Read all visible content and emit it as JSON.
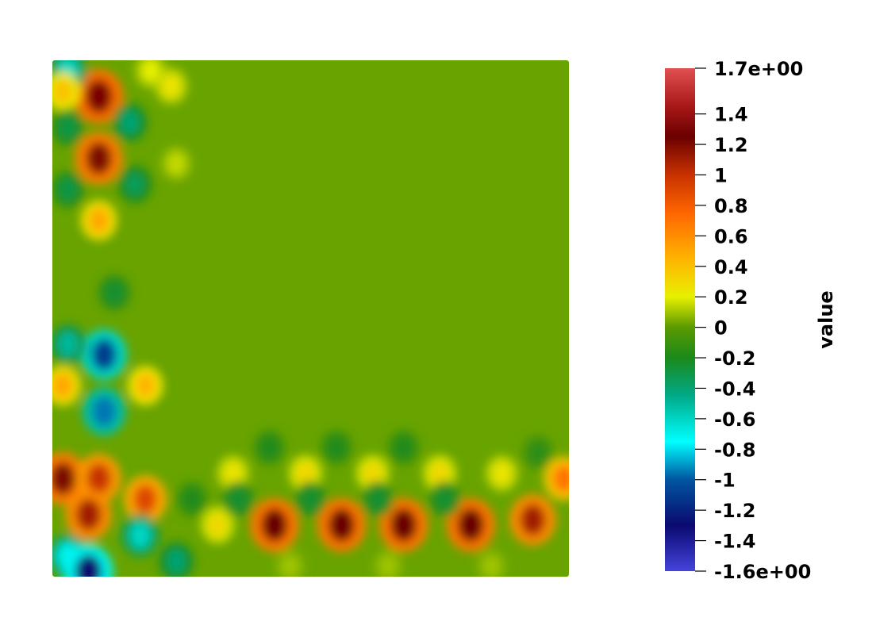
{
  "chart_data": {
    "type": "heatmap",
    "colorbar": {
      "title": "value",
      "range": [
        -1.6,
        1.7
      ],
      "ticks": [
        {
          "value": 1.7,
          "label": "1.7e+00"
        },
        {
          "value": 1.4,
          "label": "1.4"
        },
        {
          "value": 1.2,
          "label": "1.2"
        },
        {
          "value": 1.0,
          "label": "1"
        },
        {
          "value": 0.8,
          "label": "0.8"
        },
        {
          "value": 0.6,
          "label": "0.6"
        },
        {
          "value": 0.4,
          "label": "0.4"
        },
        {
          "value": 0.2,
          "label": "0.2"
        },
        {
          "value": 0.0,
          "label": "0"
        },
        {
          "value": -0.2,
          "label": "-0.2"
        },
        {
          "value": -0.4,
          "label": "-0.4"
        },
        {
          "value": -0.6,
          "label": "-0.6"
        },
        {
          "value": -0.8,
          "label": "-0.8"
        },
        {
          "value": -1.0,
          "label": "-1"
        },
        {
          "value": -1.2,
          "label": "-1.2"
        },
        {
          "value": -1.4,
          "label": "-1.4"
        },
        {
          "value": -1.6,
          "label": "-1.6e+00"
        }
      ],
      "colormap": [
        {
          "value": -1.6,
          "color": "#4444dd"
        },
        {
          "value": -1.3,
          "color": "#0a0a70"
        },
        {
          "value": -1.0,
          "color": "#0055a0"
        },
        {
          "value": -0.75,
          "color": "#00ffff"
        },
        {
          "value": -0.45,
          "color": "#00aa88"
        },
        {
          "value": -0.2,
          "color": "#1a8a1a"
        },
        {
          "value": 0.0,
          "color": "#5a9a00"
        },
        {
          "value": 0.2,
          "color": "#e8f000"
        },
        {
          "value": 0.45,
          "color": "#ffb400"
        },
        {
          "value": 0.75,
          "color": "#ff6600"
        },
        {
          "value": 1.0,
          "color": "#c83200"
        },
        {
          "value": 1.25,
          "color": "#6a0000"
        },
        {
          "value": 1.45,
          "color": "#a81818"
        },
        {
          "value": 1.7,
          "color": "#e05050"
        }
      ]
    },
    "field": {
      "background_value": 0.02,
      "features": [
        {
          "x": 0.09,
          "y": 0.07,
          "value": 1.3
        },
        {
          "x": 0.09,
          "y": 0.19,
          "value": 1.2
        },
        {
          "x": 0.09,
          "y": 0.31,
          "value": 0.5
        },
        {
          "x": 0.03,
          "y": 0.02,
          "value": -0.6
        },
        {
          "x": 0.19,
          "y": 0.02,
          "value": 0.2
        },
        {
          "x": 0.02,
          "y": 0.06,
          "value": 0.4
        },
        {
          "x": 0.15,
          "y": 0.12,
          "value": -0.4
        },
        {
          "x": 0.03,
          "y": 0.13,
          "value": -0.3
        },
        {
          "x": 0.03,
          "y": 0.25,
          "value": -0.3
        },
        {
          "x": 0.16,
          "y": 0.24,
          "value": -0.35
        },
        {
          "x": 0.23,
          "y": 0.05,
          "value": 0.25
        },
        {
          "x": 0.24,
          "y": 0.2,
          "value": 0.15
        },
        {
          "x": 0.1,
          "y": 0.57,
          "value": -1.1
        },
        {
          "x": 0.1,
          "y": 0.68,
          "value": -0.95
        },
        {
          "x": 0.02,
          "y": 0.63,
          "value": 0.5
        },
        {
          "x": 0.18,
          "y": 0.63,
          "value": 0.45
        },
        {
          "x": 0.12,
          "y": 0.45,
          "value": -0.25
        },
        {
          "x": 0.03,
          "y": 0.55,
          "value": -0.5
        },
        {
          "x": 0.02,
          "y": 0.81,
          "value": 1.2
        },
        {
          "x": 0.09,
          "y": 0.81,
          "value": 1.0
        },
        {
          "x": 0.07,
          "y": 0.88,
          "value": 1.1
        },
        {
          "x": 0.18,
          "y": 0.85,
          "value": 0.9
        },
        {
          "x": 0.03,
          "y": 0.96,
          "value": -0.7
        },
        {
          "x": 0.07,
          "y": 0.99,
          "value": -1.3
        },
        {
          "x": 0.17,
          "y": 0.92,
          "value": -0.6
        },
        {
          "x": 0.24,
          "y": 0.97,
          "value": -0.4
        },
        {
          "x": 0.32,
          "y": 0.9,
          "value": 0.3
        },
        {
          "x": 0.43,
          "y": 0.9,
          "value": 1.25
        },
        {
          "x": 0.56,
          "y": 0.9,
          "value": 1.25
        },
        {
          "x": 0.68,
          "y": 0.9,
          "value": 1.25
        },
        {
          "x": 0.81,
          "y": 0.9,
          "value": 1.25
        },
        {
          "x": 0.93,
          "y": 0.89,
          "value": 1.1
        },
        {
          "x": 0.99,
          "y": 0.81,
          "value": 0.7
        },
        {
          "x": 0.35,
          "y": 0.8,
          "value": 0.25
        },
        {
          "x": 0.49,
          "y": 0.8,
          "value": 0.3
        },
        {
          "x": 0.62,
          "y": 0.8,
          "value": 0.3
        },
        {
          "x": 0.75,
          "y": 0.8,
          "value": 0.3
        },
        {
          "x": 0.87,
          "y": 0.8,
          "value": 0.25
        },
        {
          "x": 0.42,
          "y": 0.75,
          "value": -0.2
        },
        {
          "x": 0.55,
          "y": 0.75,
          "value": -0.2
        },
        {
          "x": 0.68,
          "y": 0.75,
          "value": -0.2
        },
        {
          "x": 0.36,
          "y": 0.85,
          "value": -0.25
        },
        {
          "x": 0.5,
          "y": 0.85,
          "value": -0.25
        },
        {
          "x": 0.63,
          "y": 0.85,
          "value": -0.25
        },
        {
          "x": 0.76,
          "y": 0.85,
          "value": -0.25
        },
        {
          "x": 0.94,
          "y": 0.76,
          "value": -0.15
        },
        {
          "x": 0.27,
          "y": 0.85,
          "value": -0.2
        },
        {
          "x": 0.46,
          "y": 0.98,
          "value": 0.1
        },
        {
          "x": 0.65,
          "y": 0.98,
          "value": 0.1
        },
        {
          "x": 0.85,
          "y": 0.98,
          "value": 0.1
        }
      ]
    }
  }
}
